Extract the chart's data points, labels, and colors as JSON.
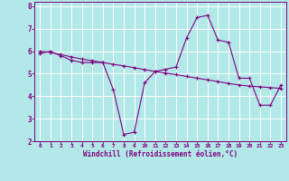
{
  "title": "",
  "xlabel": "Windchill (Refroidissement éolien,°C)",
  "ylabel": "",
  "background_color": "#b2e8e8",
  "line_color": "#800080",
  "grid_color": "#d0d0d0",
  "x_data": [
    0,
    1,
    2,
    3,
    4,
    5,
    6,
    7,
    8,
    9,
    10,
    11,
    12,
    13,
    14,
    15,
    16,
    17,
    18,
    19,
    20,
    21,
    22,
    23
  ],
  "y_data1": [
    5.9,
    6.0,
    5.8,
    5.6,
    5.5,
    5.5,
    5.5,
    4.3,
    2.3,
    2.4,
    4.6,
    5.1,
    5.2,
    5.3,
    6.6,
    7.5,
    7.6,
    6.5,
    6.4,
    4.8,
    4.8,
    3.6,
    3.6,
    4.5
  ],
  "y_data2": [
    6.0,
    5.95,
    5.85,
    5.75,
    5.65,
    5.58,
    5.5,
    5.42,
    5.35,
    5.27,
    5.18,
    5.1,
    5.03,
    4.96,
    4.88,
    4.8,
    4.73,
    4.65,
    4.57,
    4.5,
    4.45,
    4.42,
    4.38,
    4.35
  ],
  "xlim": [
    -0.5,
    23.5
  ],
  "ylim": [
    2.0,
    8.2
  ],
  "yticks": [
    2,
    3,
    4,
    5,
    6,
    7,
    8
  ],
  "xticks": [
    0,
    1,
    2,
    3,
    4,
    5,
    6,
    7,
    8,
    9,
    10,
    11,
    12,
    13,
    14,
    15,
    16,
    17,
    18,
    19,
    20,
    21,
    22,
    23
  ]
}
